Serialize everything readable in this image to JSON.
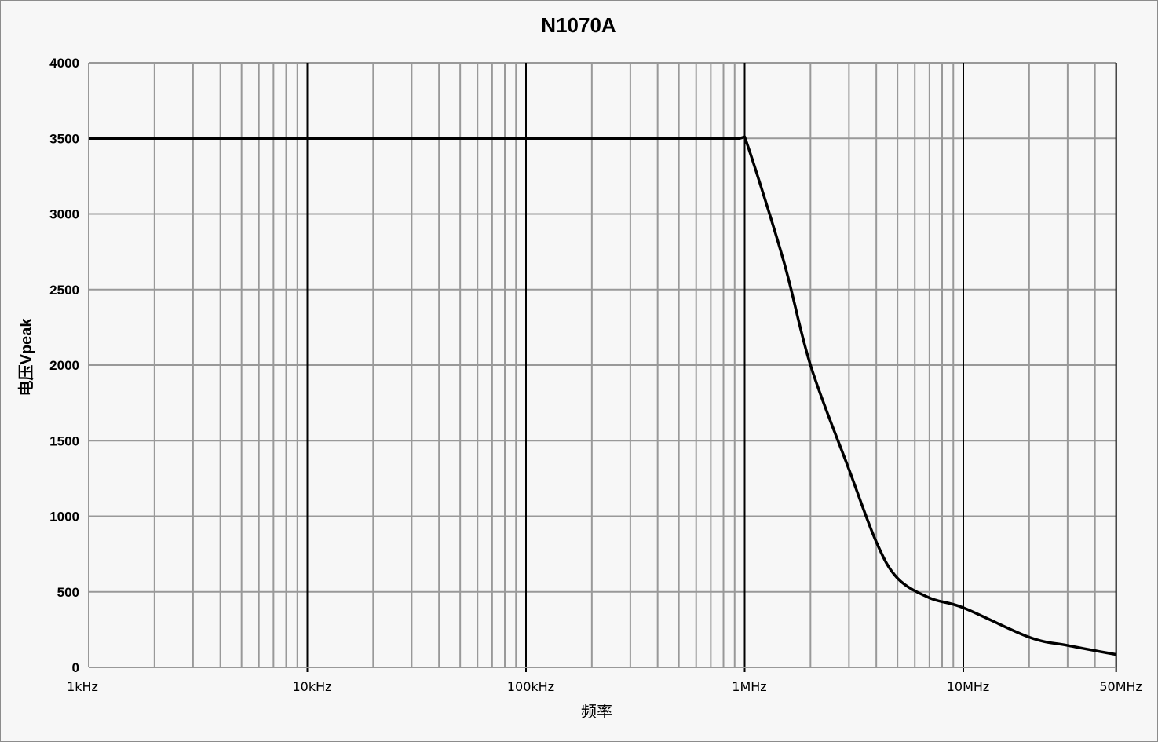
{
  "chart_data": {
    "type": "line",
    "title": "N1070A",
    "xlabel": "频率",
    "ylabel": "电压Vpeak",
    "xscale": "log",
    "xlim_hz": [
      1000,
      50000000
    ],
    "ylim": [
      0,
      4000
    ],
    "yticks": [
      0,
      500,
      1000,
      1500,
      2000,
      2500,
      3000,
      3500,
      4000
    ],
    "xticks": [
      {
        "hz": 1000,
        "label": "1kHz"
      },
      {
        "hz": 10000,
        "label": "10kHz"
      },
      {
        "hz": 100000,
        "label": "100kHz"
      },
      {
        "hz": 1000000,
        "label": "1MHz"
      },
      {
        "hz": 10000000,
        "label": "10MHz"
      },
      {
        "hz": 50000000,
        "label": "50MHz"
      }
    ],
    "grid": true,
    "legend": null,
    "series": [
      {
        "name": "N1070A",
        "color": "#000000",
        "x_hz": [
          1000,
          10000,
          100000,
          950000,
          1000000,
          1500000,
          2000000,
          3000000,
          4000000,
          5000000,
          7000000,
          10000000,
          20000000,
          30000000,
          50000000
        ],
        "values": [
          3500,
          3500,
          3500,
          3500,
          3510,
          2700,
          2000,
          1310,
          830,
          590,
          460,
          395,
          200,
          145,
          85
        ]
      }
    ]
  }
}
